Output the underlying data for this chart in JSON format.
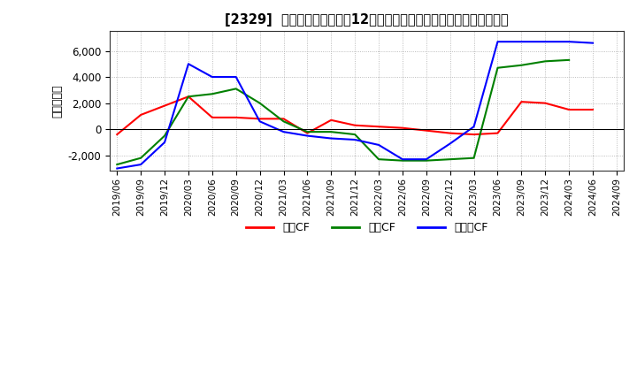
{
  "title": "[2329]  キャッシュフローの12か月移動合計の対前年同期増減額の推移",
  "ylabel": "（百万円）",
  "ylim": [
    -3200,
    7500
  ],
  "yticks": [
    -2000,
    0,
    2000,
    4000,
    6000
  ],
  "x_labels": [
    "2019/06",
    "2019/09",
    "2019/12",
    "2020/03",
    "2020/06",
    "2020/09",
    "2020/12",
    "2021/03",
    "2021/06",
    "2021/09",
    "2021/12",
    "2022/03",
    "2022/06",
    "2022/09",
    "2022/12",
    "2023/03",
    "2023/06",
    "2023/09",
    "2023/12",
    "2024/03",
    "2024/06",
    "2024/09"
  ],
  "operating_cf": [
    -400,
    1100,
    1800,
    2500,
    900,
    900,
    800,
    800,
    -300,
    700,
    300,
    200,
    100,
    -100,
    -300,
    -400,
    -300,
    2100,
    2000,
    1500,
    1500,
    null
  ],
  "investing_cf": [
    -2700,
    -2200,
    -500,
    2500,
    2700,
    3100,
    2000,
    600,
    -200,
    -200,
    -400,
    -2300,
    -2400,
    -2400,
    -2300,
    -2200,
    4700,
    4900,
    5200,
    5300,
    null,
    null
  ],
  "free_cf": [
    -3000,
    -2700,
    -1000,
    5000,
    4000,
    4000,
    600,
    -200,
    -500,
    -700,
    -800,
    -1200,
    -2300,
    -2300,
    -1100,
    200,
    6700,
    6700,
    6700,
    6700,
    6600,
    null
  ],
  "colors": {
    "operating": "#ff0000",
    "investing": "#008000",
    "free": "#0000ff"
  },
  "legend_labels": [
    "営業CF",
    "投資CF",
    "フリーCF"
  ],
  "background_color": "#ffffff",
  "grid_color": "#aaaaaa"
}
